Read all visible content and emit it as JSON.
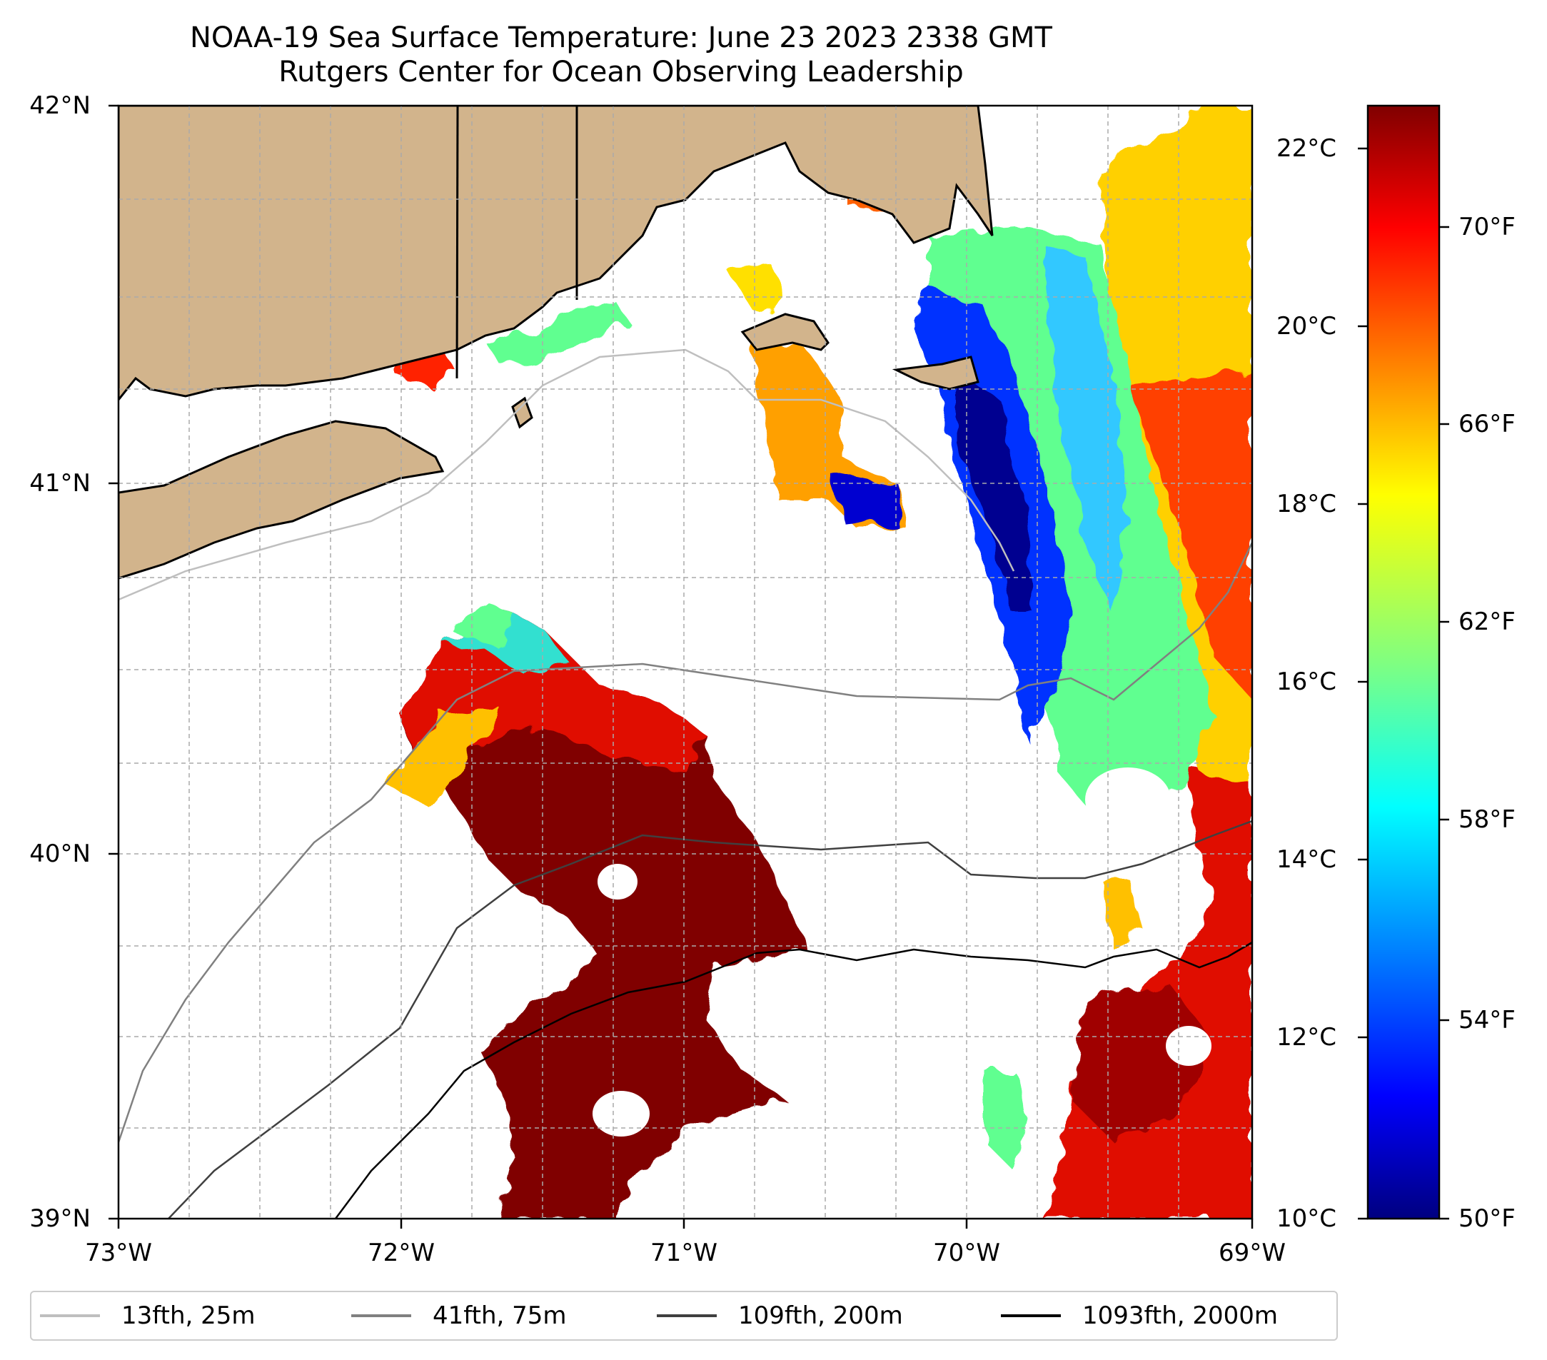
{
  "title": "NOAA-19 Sea Surface Temperature: June 23 2023 2338 GMT",
  "subtitle": "Rutgers Center for Ocean Observing Leadership",
  "map": {
    "lat_labels": [
      "42°N",
      "41°N",
      "40°N",
      "39°N"
    ],
    "lon_labels": [
      "73°W",
      "72°W",
      "71°W",
      "70°W",
      "69°W"
    ],
    "lat_range": [
      39,
      42
    ],
    "lon_range": [
      -73,
      -69
    ],
    "grid": true,
    "land_color": "#d2b48c",
    "sst_color_scale": "jet"
  },
  "colorbar": {
    "celsius_labels": [
      "22°C",
      "20°C",
      "18°C",
      "16°C",
      "14°C",
      "12°C",
      "10°C"
    ],
    "fahrenheit_labels": [
      "70°F",
      "66°F",
      "62°F",
      "58°F",
      "54°F",
      "50°F"
    ],
    "celsius_range": [
      10,
      22.5
    ],
    "colors": [
      "#800000",
      "#ff0000",
      "#ff8000",
      "#ffff00",
      "#80ff80",
      "#00ffff",
      "#0080ff",
      "#0000ff",
      "#000080"
    ]
  },
  "legend": {
    "items": [
      {
        "label": "13fth, 25m",
        "color": "#bfbfbf"
      },
      {
        "label": "41fth, 75m",
        "color": "#808080"
      },
      {
        "label": "109fth, 200m",
        "color": "#404040"
      },
      {
        "label": "1093fth, 2000m",
        "color": "#000000"
      }
    ]
  }
}
